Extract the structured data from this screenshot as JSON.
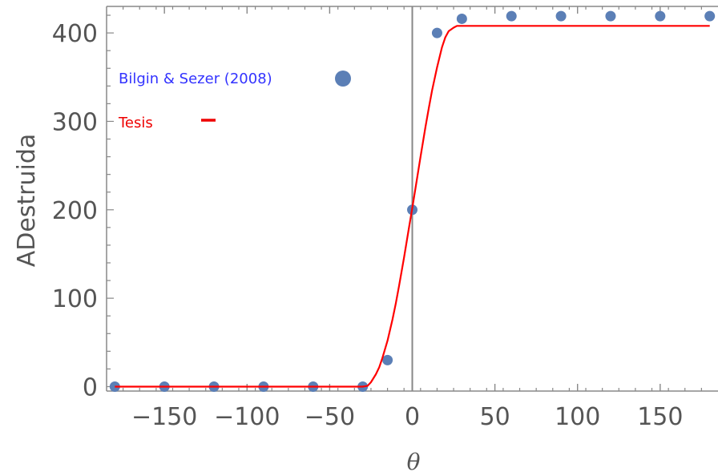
{
  "chart_data": {
    "type": "scatter",
    "xlabel": "θ",
    "ylabel": "ADestruida",
    "xlim": [
      -185,
      185
    ],
    "ylim": [
      -5,
      430
    ],
    "x_ticks": [
      -150,
      -100,
      -50,
      0,
      50,
      100,
      150
    ],
    "y_ticks": [
      0,
      100,
      200,
      300,
      400
    ],
    "x_tick_labels": [
      "−150",
      "−100",
      "−50",
      "0",
      "50",
      "100",
      "150"
    ],
    "y_tick_labels": [
      "0",
      "100",
      "200",
      "300",
      "400"
    ],
    "series": [
      {
        "name": "Bilgin & Sezer (2008)",
        "kind": "points",
        "color": "#5b7fb6",
        "x": [
          -180,
          -150,
          -120,
          -90,
          -60,
          -30,
          -15,
          0,
          15,
          30,
          60,
          90,
          120,
          150,
          180
        ],
        "y": [
          0,
          0,
          0,
          0,
          0,
          0,
          30,
          200,
          400,
          416,
          419,
          419,
          419,
          419,
          419
        ]
      },
      {
        "name": "Tesis",
        "kind": "line",
        "color": "#ff0000",
        "x": [
          -180,
          -30,
          -27,
          -25,
          -22,
          -20,
          -18,
          -15,
          -12,
          -10,
          -8,
          -5,
          -2,
          0,
          2,
          5,
          8,
          10,
          12,
          15,
          18,
          20,
          22,
          25,
          27,
          30,
          32,
          35,
          180
        ],
        "y": [
          0,
          0,
          1,
          5,
          14,
          22,
          33,
          52,
          76,
          94,
          114,
          146,
          180,
          202,
          225,
          260,
          294,
          315,
          335,
          361,
          384,
          395,
          402,
          406,
          408,
          408,
          408,
          408,
          408
        ]
      }
    ],
    "legend": {
      "placement": "top-left",
      "entries": [
        {
          "label": "Bilgin & Sezer (2008)",
          "color": "#3333ff",
          "marker": "circle",
          "marker_color": "#5b7fb6"
        },
        {
          "label": "Tesis",
          "color": "#ee0000",
          "marker": "dash",
          "marker_color": "#ee0000"
        }
      ]
    },
    "grid": false,
    "colors": {
      "frame": "#888888",
      "zero_axis": "#888888",
      "tick_label": "#555555"
    }
  }
}
